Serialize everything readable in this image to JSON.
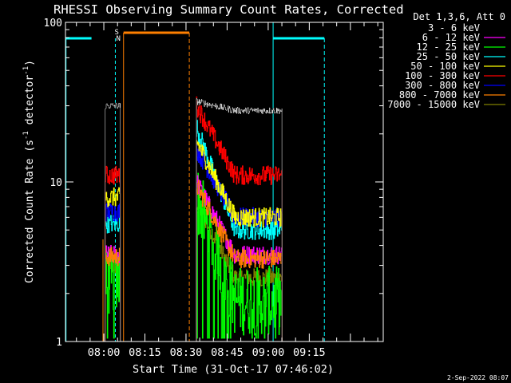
{
  "chart_data": {
    "type": "line",
    "title": "RHESSI Observing Summary Count Rates, Corrected",
    "xlabel": "Start Time (31-Oct-17 07:46:02)",
    "ylabel_main": "Corrected Count Rate (s",
    "ylabel_sup1": "-1",
    "ylabel_mid": " detector",
    "ylabel_sup2": "-1",
    "ylabel_end": ")",
    "yscale": "log",
    "ylim": [
      1,
      100
    ],
    "yticks": [
      {
        "v": 1,
        "label": "1"
      },
      {
        "v": 10,
        "label": "10"
      },
      {
        "v": 100,
        "label": "100"
      }
    ],
    "xlim_minutes": [
      -14.0,
      102.0
    ],
    "xticks": [
      {
        "v": 0,
        "label": "08:00"
      },
      {
        "v": 15,
        "label": "08:15"
      },
      {
        "v": 30,
        "label": "08:30"
      },
      {
        "v": 45,
        "label": "08:45"
      },
      {
        "v": 60,
        "label": "09:00"
      },
      {
        "v": 75,
        "label": "09:15"
      }
    ],
    "legend_title": "Det 1,3,6, Att 0",
    "series": [
      {
        "name": "3 - 6 keV",
        "color": "#000000",
        "pre": 30,
        "post_start": 32,
        "post_end": 28
      },
      {
        "name": "6 - 12 keV",
        "color": "#ff00ff",
        "pre": 3.5,
        "post_start": 10,
        "post_end": 3.5
      },
      {
        "name": "12 - 25 keV",
        "color": "#00ff00",
        "pre": 2.4,
        "post_start": 8,
        "post_end": 1.8
      },
      {
        "name": "25 - 50 keV",
        "color": "#00ffff",
        "pre": 5.5,
        "post_start": 22,
        "post_end": 5.0
      },
      {
        "name": "50 - 100 keV",
        "color": "#ffff00",
        "pre": 8.0,
        "post_start": 18,
        "post_end": 6.0
      },
      {
        "name": "100 - 300 keV",
        "color": "#ff0000",
        "pre": 11,
        "post_start": 30,
        "post_end": 11
      },
      {
        "name": "300 - 800 keV",
        "color": "#0000ff",
        "pre": 6.5,
        "post_start": 16,
        "post_end": 6.0
      },
      {
        "name": "800 - 7000 keV",
        "color": "#ff7f00",
        "pre": 3.4,
        "post_start": 9.5,
        "post_end": 3.3
      },
      {
        "name": "7000 - 15000 keV",
        "color": "#7f7f00",
        "pre": 3.0,
        "post_start": 7.5,
        "post_end": 2.5
      }
    ],
    "data_segments_minutes": [
      [
        0.5,
        6.0
      ],
      [
        33.8,
        65.0
      ]
    ],
    "saa_bar_minutes": [
      -14.0,
      -4.5
    ],
    "saa_bar2_minutes": [
      61.8,
      80.5
    ],
    "night_bar_minutes": [
      7.2,
      31.2
    ],
    "flags": [
      {
        "t": 4.8,
        "label": "S"
      },
      {
        "t": 5.4,
        "label": "N"
      }
    ]
  },
  "timestamp": "2-Sep-2022 08:07"
}
